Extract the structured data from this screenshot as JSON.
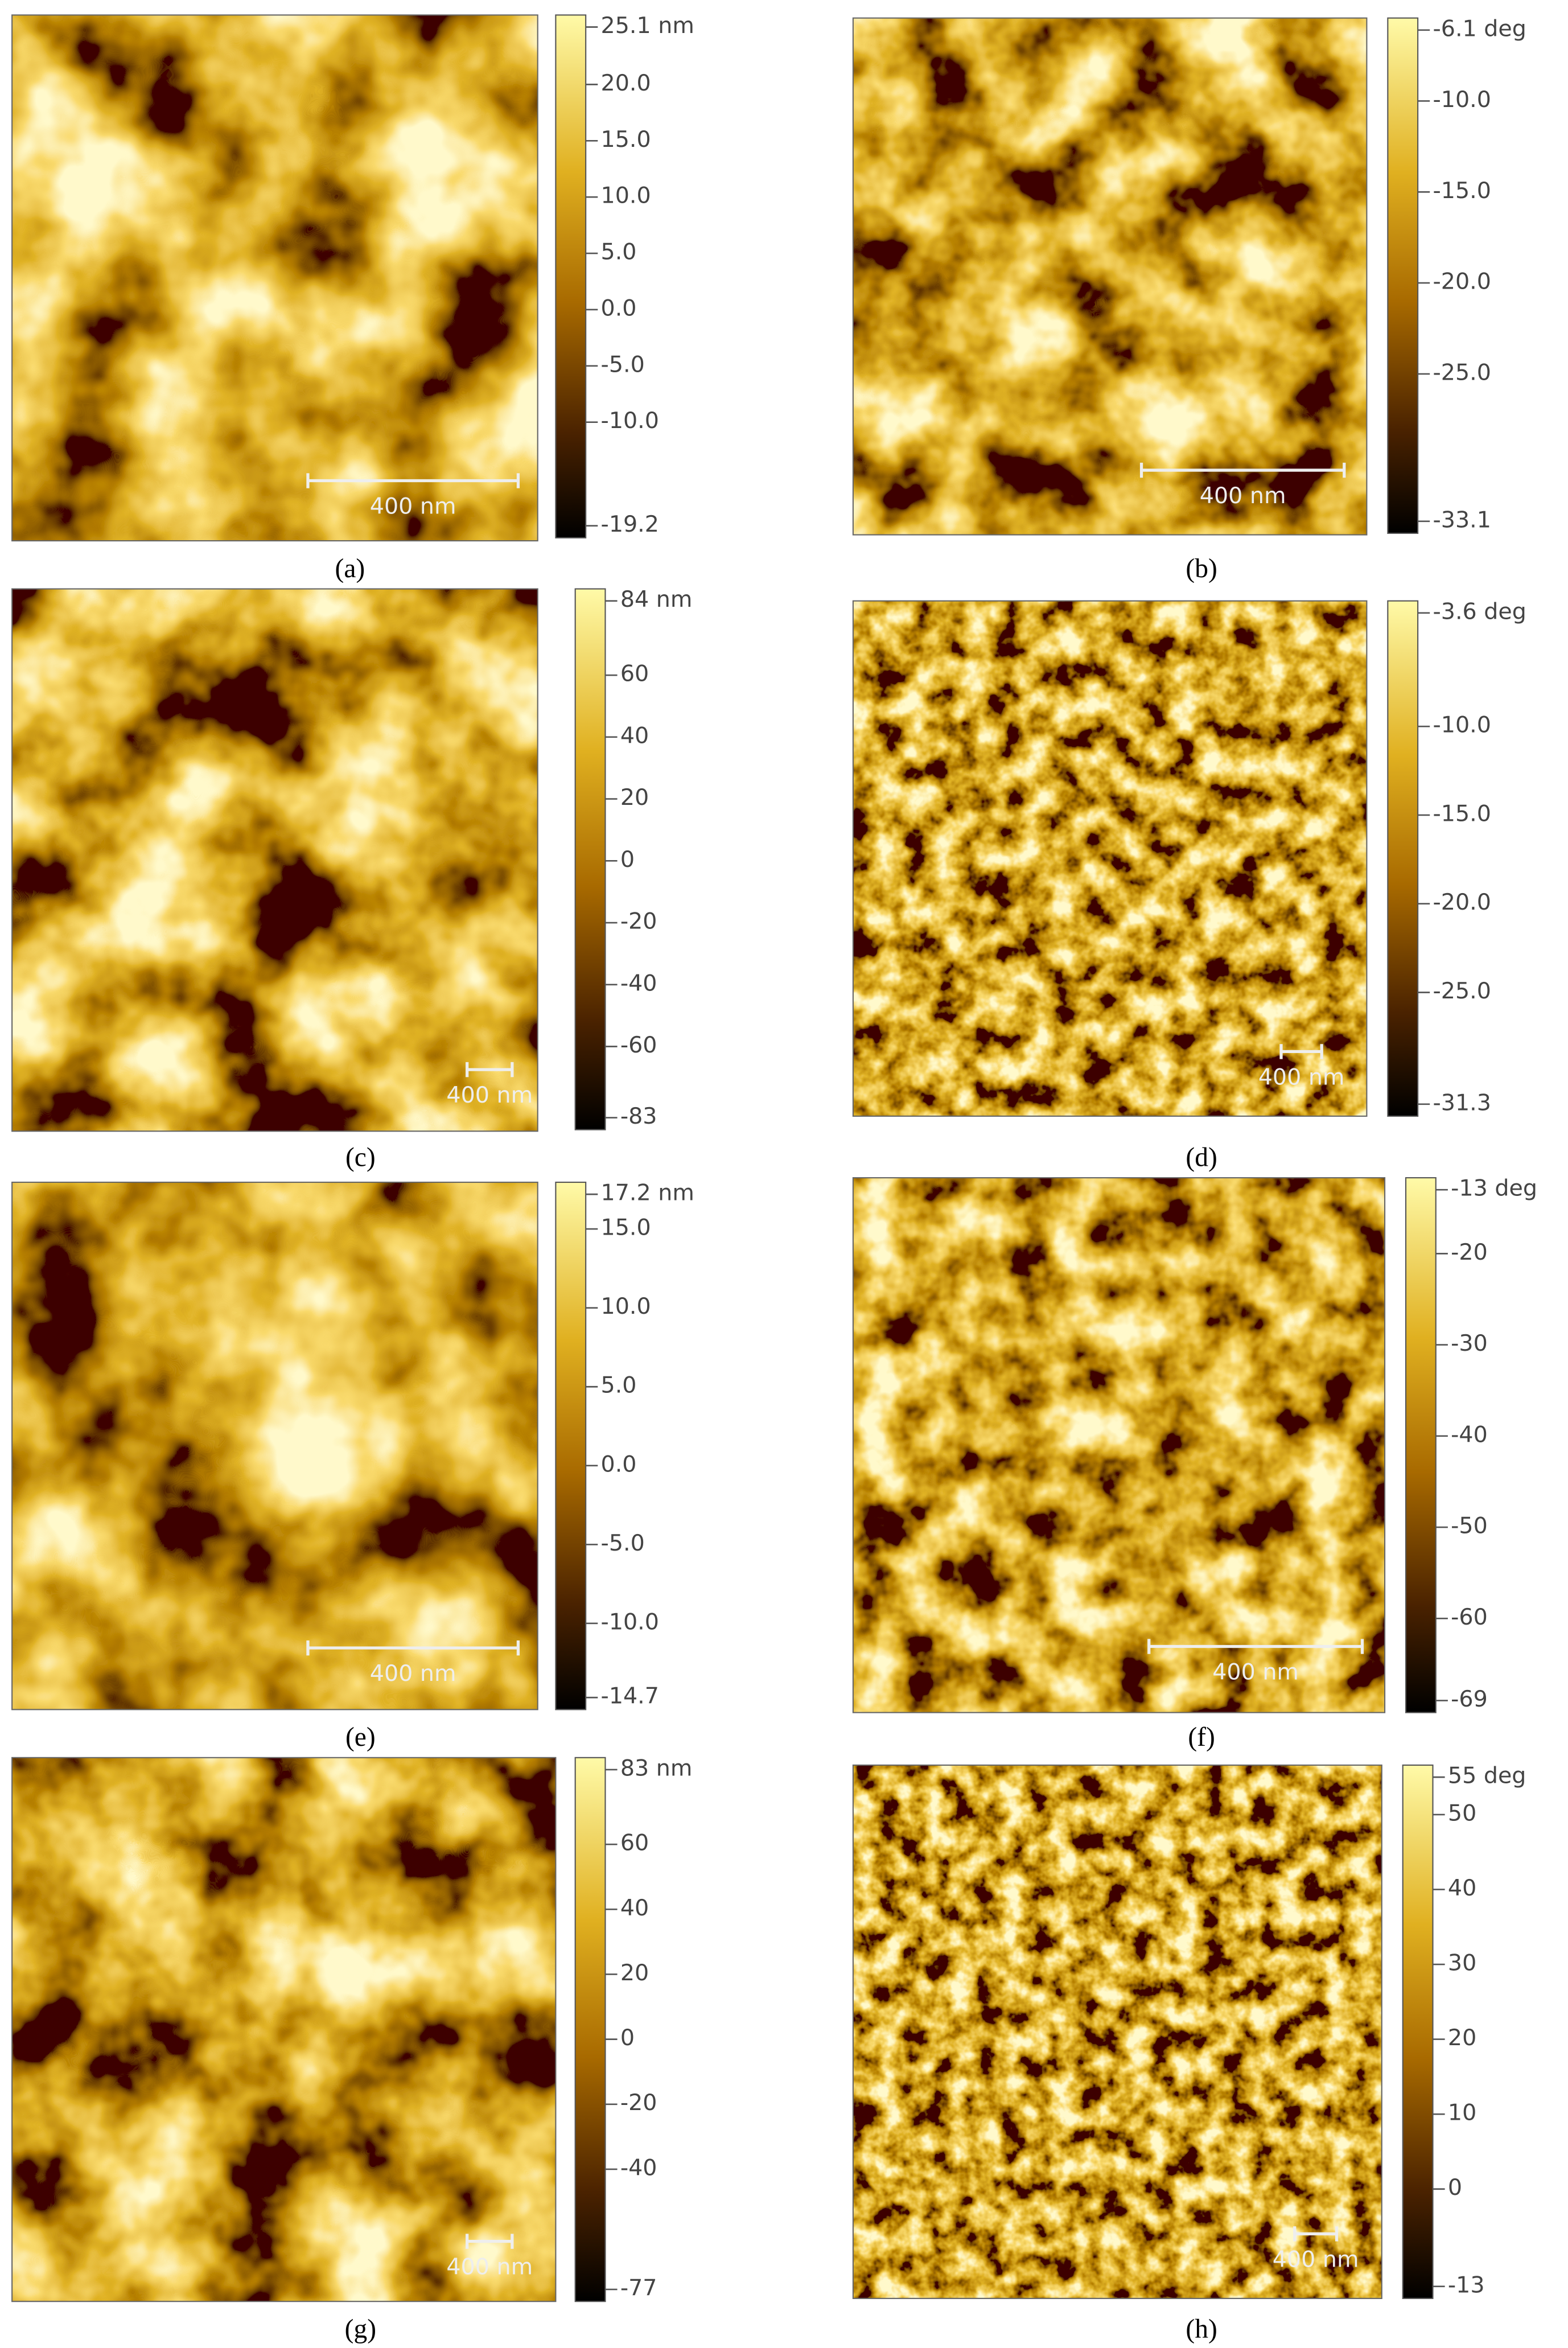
{
  "panels": [
    {
      "caption": "(a)",
      "scale_bar": "400 nm",
      "colorbar": {
        "ticks": [
          {
            "value": 25.1,
            "label": "25.1 nm"
          },
          {
            "value": 20.0,
            "label": "20.0"
          },
          {
            "value": 15.0,
            "label": "15.0"
          },
          {
            "value": 10.0,
            "label": "10.0"
          },
          {
            "value": 5.0,
            "label": "5.0"
          },
          {
            "value": 0.0,
            "label": "0.0"
          },
          {
            "value": -5.0,
            "label": "-5.0"
          },
          {
            "value": -10.0,
            "label": "-10.0"
          },
          {
            "value": -19.2,
            "label": "-19.2"
          }
        ]
      }
    },
    {
      "caption": "(b)",
      "scale_bar": "400 nm",
      "colorbar": {
        "ticks": [
          {
            "value": -6.1,
            "label": "-6.1 deg"
          },
          {
            "value": -10.0,
            "label": "-10.0"
          },
          {
            "value": -15.0,
            "label": "-15.0"
          },
          {
            "value": -20.0,
            "label": "-20.0"
          },
          {
            "value": -25.0,
            "label": "-25.0"
          },
          {
            "value": -33.1,
            "label": "-33.1"
          }
        ]
      }
    },
    {
      "caption": "(c)",
      "scale_bar": "400 nm",
      "colorbar": {
        "ticks": [
          {
            "value": 84,
            "label": "84 nm"
          },
          {
            "value": 60,
            "label": "60"
          },
          {
            "value": 40,
            "label": "40"
          },
          {
            "value": 20,
            "label": "20"
          },
          {
            "value": 0,
            "label": "0"
          },
          {
            "value": -20,
            "label": "-20"
          },
          {
            "value": -40,
            "label": "-40"
          },
          {
            "value": -60,
            "label": "-60"
          },
          {
            "value": -83,
            "label": "-83"
          }
        ]
      }
    },
    {
      "caption": "(d)",
      "scale_bar": "400 nm",
      "colorbar": {
        "ticks": [
          {
            "value": -3.6,
            "label": "-3.6 deg"
          },
          {
            "value": -10.0,
            "label": "-10.0"
          },
          {
            "value": -15.0,
            "label": "-15.0"
          },
          {
            "value": -20.0,
            "label": "-20.0"
          },
          {
            "value": -25.0,
            "label": "-25.0"
          },
          {
            "value": -31.3,
            "label": "-31.3"
          }
        ]
      }
    },
    {
      "caption": "(e)",
      "scale_bar": "400 nm",
      "colorbar": {
        "ticks": [
          {
            "value": 17.2,
            "label": "17.2 nm"
          },
          {
            "value": 15.0,
            "label": "15.0"
          },
          {
            "value": 10.0,
            "label": "10.0"
          },
          {
            "value": 5.0,
            "label": "5.0"
          },
          {
            "value": 0.0,
            "label": "0.0"
          },
          {
            "value": -5.0,
            "label": "-5.0"
          },
          {
            "value": -10.0,
            "label": "-10.0"
          },
          {
            "value": -14.7,
            "label": "-14.7"
          }
        ]
      }
    },
    {
      "caption": "(f)",
      "scale_bar": "400 nm",
      "colorbar": {
        "ticks": [
          {
            "value": -13,
            "label": "-13 deg"
          },
          {
            "value": -20,
            "label": "-20"
          },
          {
            "value": -30,
            "label": "-30"
          },
          {
            "value": -40,
            "label": "-40"
          },
          {
            "value": -50,
            "label": "-50"
          },
          {
            "value": -60,
            "label": "-60"
          },
          {
            "value": -69,
            "label": "-69"
          }
        ]
      }
    },
    {
      "caption": "(g)",
      "scale_bar": "400 nm",
      "colorbar": {
        "ticks": [
          {
            "value": 83,
            "label": "83 nm"
          },
          {
            "value": 60,
            "label": "60"
          },
          {
            "value": 40,
            "label": "40"
          },
          {
            "value": 20,
            "label": "20"
          },
          {
            "value": 0,
            "label": "0"
          },
          {
            "value": -20,
            "label": "-20"
          },
          {
            "value": -40,
            "label": "-40"
          },
          {
            "value": -77,
            "label": "-77"
          }
        ]
      }
    },
    {
      "caption": "(h)",
      "scale_bar": "400 nm",
      "colorbar": {
        "ticks": [
          {
            "value": 55,
            "label": "55 deg"
          },
          {
            "value": 50,
            "label": "50"
          },
          {
            "value": 40,
            "label": "40"
          },
          {
            "value": 30,
            "label": "30"
          },
          {
            "value": 20,
            "label": "20"
          },
          {
            "value": 10,
            "label": "10"
          },
          {
            "value": 0,
            "label": "0"
          },
          {
            "value": -13,
            "label": "-13"
          }
        ]
      }
    }
  ]
}
